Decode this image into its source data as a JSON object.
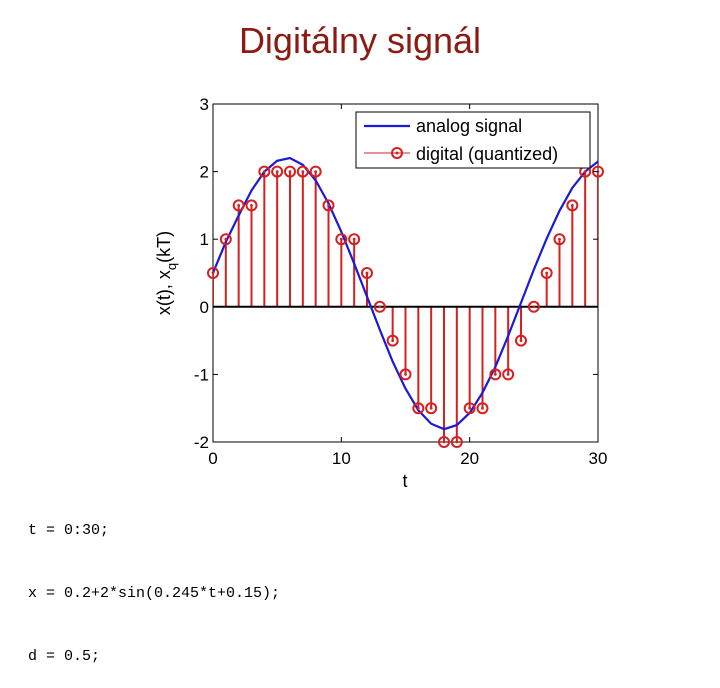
{
  "slide": {
    "title": "Digitálny signál"
  },
  "code": {
    "lines": [
      "t = 0:30;",
      "x = 0.2+2*sin(0.245*t+0.15);",
      "d = 0.5;"
    ]
  },
  "colors": {
    "analog": "#1a1ad6",
    "digital": "#d62020",
    "title": "#8b1a12"
  },
  "chart_data": {
    "type": "line",
    "title": "",
    "xlabel": "t",
    "ylabel": "x(t), x_q(kT)",
    "ylabel_parts": {
      "main": "x(t), x",
      "sub": "q",
      "tail": "(kT)"
    },
    "xlim": [
      0,
      30
    ],
    "ylim": [
      -2,
      3
    ],
    "xticks": [
      0,
      10,
      20,
      30
    ],
    "yticks": [
      -2,
      -1,
      0,
      1,
      2,
      3
    ],
    "xtick_labels": [
      "0",
      "10",
      "20",
      "30"
    ],
    "ytick_labels": [
      "-2",
      "-1",
      "0",
      "1",
      "2",
      "3"
    ],
    "grid": false,
    "legend_position": "top-right",
    "series": [
      {
        "name": "analog signal",
        "kind": "line",
        "x": [
          0,
          1,
          2,
          3,
          4,
          5,
          6,
          7,
          8,
          9,
          10,
          11,
          12,
          13,
          14,
          15,
          16,
          17,
          18,
          19,
          20,
          21,
          22,
          23,
          24,
          25,
          26,
          27,
          28,
          29,
          30
        ],
        "values": [
          0.5,
          0.96,
          1.35,
          1.72,
          2.0,
          2.16,
          2.2,
          2.1,
          1.87,
          1.53,
          1.11,
          0.64,
          0.15,
          -0.34,
          -0.81,
          -1.21,
          -1.53,
          -1.73,
          -1.81,
          -1.75,
          -1.57,
          -1.27,
          -0.89,
          -0.43,
          0.06,
          0.55,
          1.01,
          1.42,
          1.76,
          2.0,
          2.15
        ]
      },
      {
        "name": "digital (quantized)",
        "kind": "stem",
        "x": [
          0,
          1,
          2,
          3,
          4,
          5,
          6,
          7,
          8,
          9,
          10,
          11,
          12,
          13,
          14,
          15,
          16,
          17,
          18,
          19,
          20,
          21,
          22,
          23,
          24,
          25,
          26,
          27,
          28,
          29,
          30
        ],
        "values": [
          0.5,
          1.0,
          1.5,
          1.5,
          2.0,
          2.0,
          2.0,
          2.0,
          2.0,
          1.5,
          1.0,
          1.0,
          0.5,
          0.0,
          -0.5,
          -1.0,
          -1.5,
          -1.5,
          -2.0,
          -2.0,
          -1.5,
          -1.5,
          -1.0,
          -1.0,
          -0.5,
          0.0,
          0.5,
          1.0,
          1.5,
          2.0,
          2.0
        ]
      }
    ]
  }
}
